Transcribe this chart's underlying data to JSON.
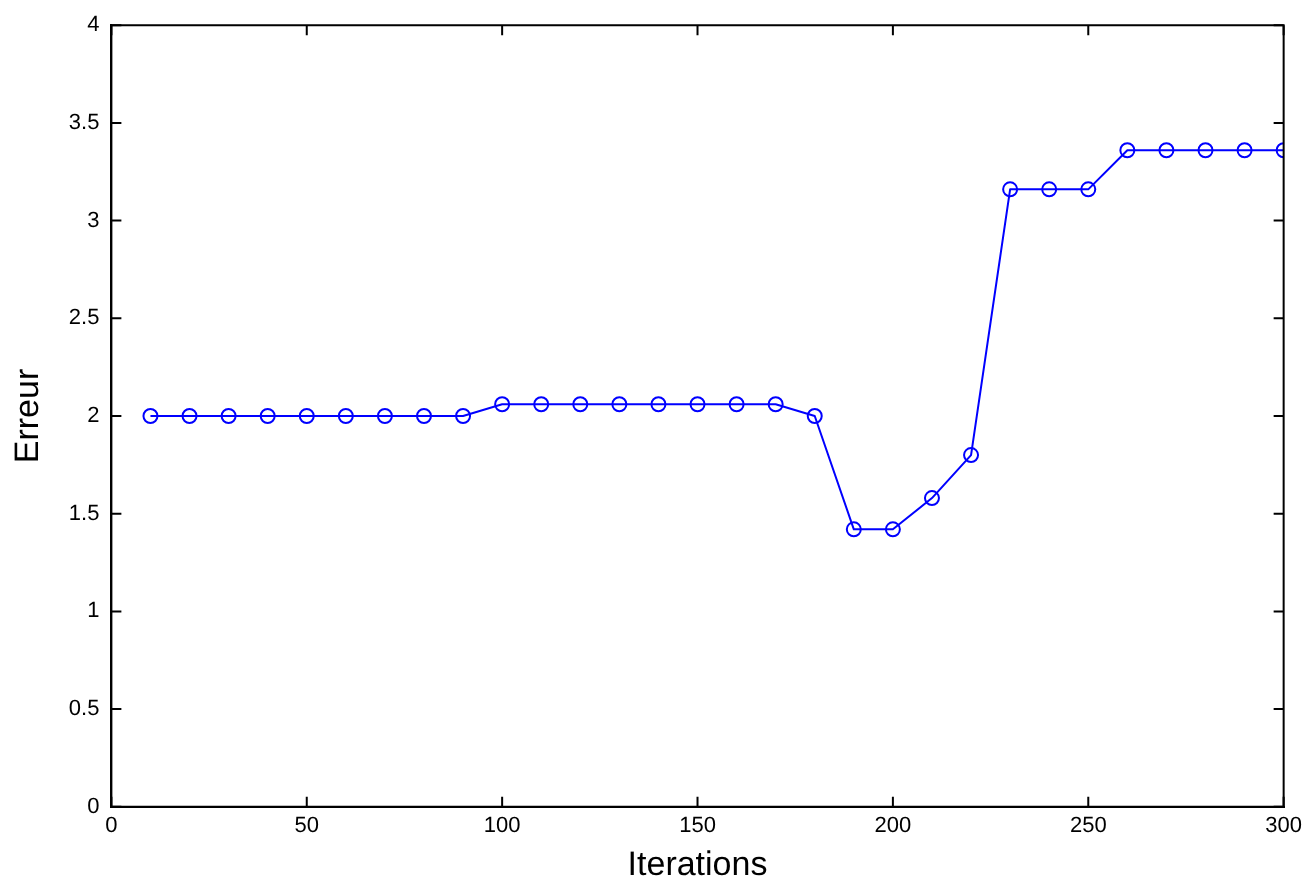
{
  "chart_data": {
    "type": "line",
    "xlabel": "Iterations",
    "ylabel": "Erreur",
    "x": [
      10,
      20,
      30,
      40,
      50,
      60,
      70,
      80,
      90,
      100,
      110,
      120,
      130,
      140,
      150,
      160,
      170,
      180,
      190,
      200,
      210,
      220,
      230,
      240,
      250,
      260,
      270,
      280,
      290,
      300
    ],
    "series": [
      {
        "color": "#0000ff",
        "values": [
          2,
          2,
          2,
          2,
          2,
          2,
          2,
          2,
          2,
          2.06,
          2.06,
          2.06,
          2.06,
          2.06,
          2.06,
          2.06,
          2.06,
          2,
          1.42,
          1.42,
          1.58,
          1.8,
          3.16,
          3.16,
          3.16,
          3.36,
          3.36,
          3.36,
          3.36,
          3.36
        ]
      }
    ],
    "xlim": [
      0,
      300
    ],
    "xticks": [
      0,
      50,
      100,
      150,
      200,
      250,
      300
    ],
    "ylim": [
      0,
      4
    ],
    "yticks": [
      0,
      0.5,
      1,
      1.5,
      2,
      2.5,
      3,
      3.5,
      4
    ],
    "marker": "circle",
    "line_style": "solid",
    "legend": false
  }
}
